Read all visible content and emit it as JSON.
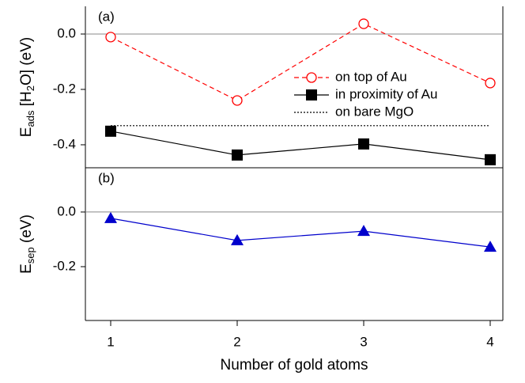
{
  "chart_data": [
    {
      "type": "line",
      "panel_label": "(a)",
      "ylabel": [
        {
          "text": "E"
        },
        {
          "text": "ads",
          "sub": true
        },
        {
          "text": " [H"
        },
        {
          "text": "2",
          "sub": true
        },
        {
          "text": "O] (eV)"
        }
      ],
      "x": [
        1,
        2,
        3,
        4
      ],
      "xlim": [
        0.8,
        4.1
      ],
      "ylim": [
        -0.483,
        0.1
      ],
      "yticks": [
        {
          "value": 0,
          "label": "0.0"
        },
        -0.2,
        -0.4
      ],
      "zero_line": true,
      "legend": "center right",
      "series": [
        {
          "name": "on top of Au",
          "color": "#ff0000",
          "dash": "dashed",
          "marker": "circle-open",
          "values": [
            -0.011,
            -0.24,
            0.037,
            -0.177
          ]
        },
        {
          "name": "in proximity of Au",
          "color": "#000000",
          "dash": "solid",
          "marker": "square",
          "values": [
            -0.351,
            -0.437,
            -0.397,
            -0.454
          ]
        },
        {
          "name": "on bare MgO",
          "color": "#000000",
          "dash": "dotted",
          "marker": "none",
          "values": [
            -0.331,
            -0.331,
            -0.331,
            -0.331
          ]
        }
      ]
    },
    {
      "type": "line",
      "panel_label": "(b)",
      "ylabel": [
        {
          "text": "E"
        },
        {
          "text": "sep",
          "sub": true
        },
        {
          "text": " (eV)"
        }
      ],
      "xlabel": "Number of gold atoms",
      "x": [
        1,
        2,
        3,
        4
      ],
      "xlim": [
        0.8,
        4.1
      ],
      "xticks": [
        1,
        2,
        3,
        4
      ],
      "ylim": [
        -0.397,
        0.162
      ],
      "yticks": [
        {
          "value": 0,
          "label": "0.0"
        },
        -0.2
      ],
      "zero_line": true,
      "series": [
        {
          "color": "#0000cc",
          "dash": "solid",
          "marker": "triangle",
          "values": [
            -0.023,
            -0.104,
            -0.07,
            -0.128
          ]
        }
      ]
    }
  ]
}
